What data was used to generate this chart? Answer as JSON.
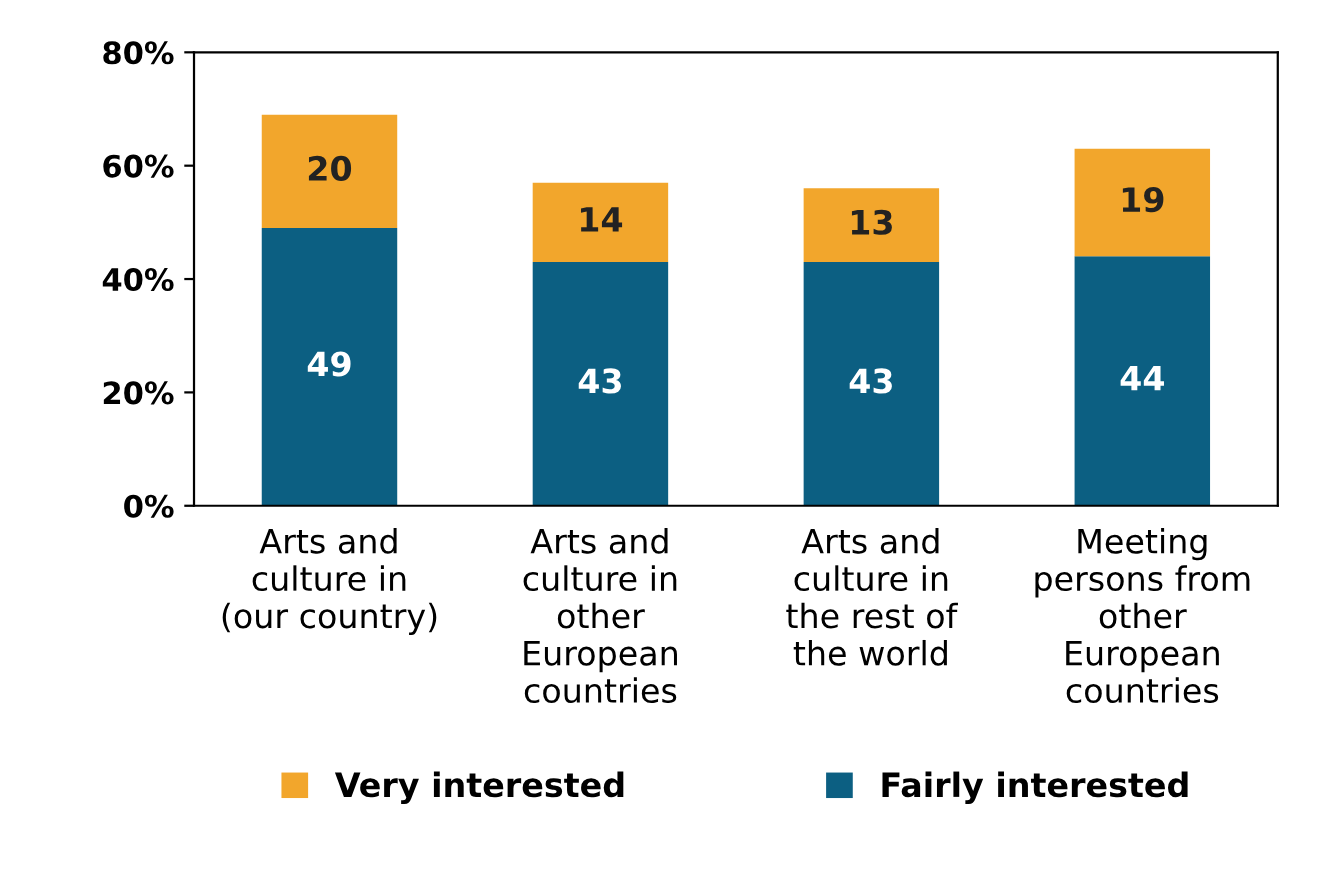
{
  "chart_data": {
    "type": "bar",
    "stacked": true,
    "data_labels": true,
    "categories": [
      "Arts and\nculture in\n(our country)",
      "Arts and\nculture in\nother\nEuropean\ncountries",
      "Arts and\nculture in\nthe rest of\nthe world",
      "Meeting\npersons from\nother\nEuropean\ncountries"
    ],
    "series": [
      {
        "name": "Fairly interested",
        "color": "#0c5f82",
        "values": [
          49,
          43,
          43,
          44
        ]
      },
      {
        "name": "Very interested",
        "color": "#f2a62c",
        "values": [
          20,
          14,
          13,
          19
        ]
      }
    ],
    "ylim": [
      0,
      80
    ],
    "yticks": [
      {
        "value": 0,
        "label": "0%"
      },
      {
        "value": 20,
        "label": "20%"
      },
      {
        "value": 40,
        "label": "40%"
      },
      {
        "value": 60,
        "label": "60%"
      },
      {
        "value": 80,
        "label": "80%"
      }
    ],
    "grid": false,
    "legend": "bottom"
  }
}
